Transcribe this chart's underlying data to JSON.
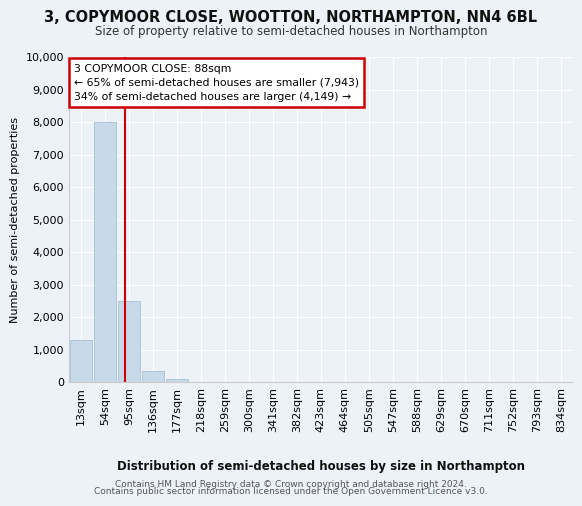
{
  "title": "3, COPYMOOR CLOSE, WOOTTON, NORTHAMPTON, NN4 6BL",
  "subtitle": "Size of property relative to semi-detached houses in Northampton",
  "xlabel": "Distribution of semi-detached houses by size in Northampton",
  "ylabel": "Number of semi-detached properties",
  "categories": [
    "13sqm",
    "54sqm",
    "95sqm",
    "136sqm",
    "177sqm",
    "218sqm",
    "259sqm",
    "300sqm",
    "341sqm",
    "382sqm",
    "423sqm",
    "464sqm",
    "505sqm",
    "547sqm",
    "588sqm",
    "629sqm",
    "670sqm",
    "711sqm",
    "752sqm",
    "793sqm",
    "834sqm"
  ],
  "values": [
    1300,
    8000,
    2500,
    350,
    100,
    5,
    0,
    0,
    0,
    0,
    0,
    0,
    0,
    0,
    0,
    0,
    0,
    0,
    0,
    0,
    0
  ],
  "bar_color": "#c8d9ea",
  "bar_edge_color": "#a8bfcf",
  "property_line_x": 1.83,
  "property_line_color": "#cc0000",
  "annotation_text": "3 COPYMOOR CLOSE: 88sqm\n← 65% of semi-detached houses are smaller (7,943)\n34% of semi-detached houses are larger (4,149) →",
  "annotation_box_color": "#ffffff",
  "annotation_box_edge": "#cc0000",
  "ylim": [
    0,
    10000
  ],
  "yticks": [
    0,
    1000,
    2000,
    3000,
    4000,
    5000,
    6000,
    7000,
    8000,
    9000,
    10000
  ],
  "footer1": "Contains HM Land Registry data © Crown copyright and database right 2024.",
  "footer2": "Contains public sector information licensed under the Open Government Licence v3.0.",
  "bg_color": "#edf2f8",
  "plot_bg_color": "#edf2f8",
  "grid_color": "#ffffff"
}
